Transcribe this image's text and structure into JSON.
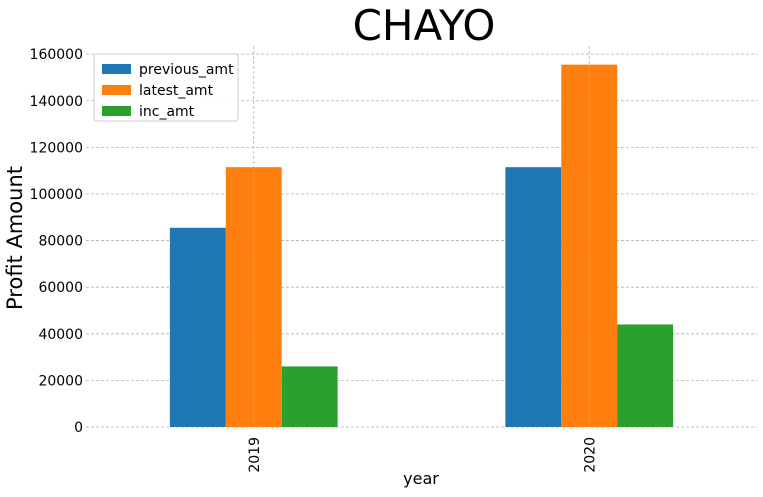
{
  "chart_data": {
    "type": "bar",
    "title": "CHAYO",
    "xlabel": "year",
    "ylabel": "Profit Amount",
    "categories": [
      "2019",
      "2020"
    ],
    "series": [
      {
        "name": "previous_amt",
        "color": "#1f77b4",
        "values": [
          85500,
          111500
        ]
      },
      {
        "name": "latest_amt",
        "color": "#ff7f0e",
        "values": [
          111500,
          155500
        ]
      },
      {
        "name": "inc_amt",
        "color": "#2ca02c",
        "values": [
          26000,
          44000
        ]
      }
    ],
    "ylim": [
      0,
      163500
    ],
    "yticks": [
      0,
      20000,
      40000,
      60000,
      80000,
      100000,
      120000,
      140000,
      160000
    ],
    "grid": true,
    "legend_position": "top-left"
  }
}
